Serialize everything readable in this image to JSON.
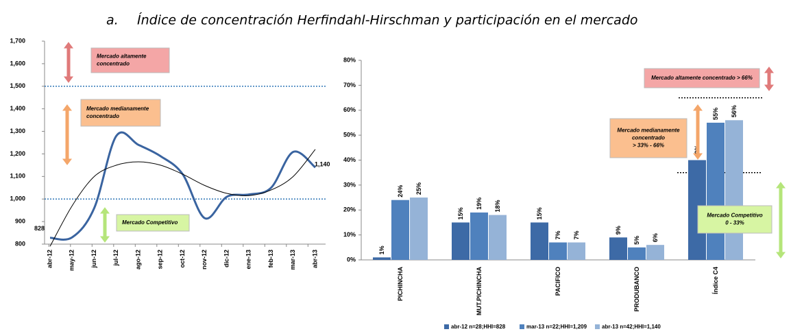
{
  "title": {
    "label": "a.",
    "text": "Índice de concentración Herfindahl-Hirschman y participación en el mercado"
  },
  "chart_data": [
    {
      "type": "line",
      "categories": [
        "abr-12",
        "may-12",
        "jun-12",
        "jul-12",
        "ago-12",
        "sep-12",
        "oct-12",
        "nov-12",
        "dic-12",
        "ene-13",
        "feb-13",
        "mar-13",
        "abr-13"
      ],
      "series": [
        {
          "color": "#3a64a0",
          "values": [
            828,
            830,
            960,
            1280,
            1240,
            1190,
            1110,
            915,
            1010,
            1020,
            1050,
            1209,
            1140
          ],
          "value_labels": [
            "828",
            null,
            null,
            null,
            null,
            null,
            null,
            null,
            null,
            null,
            null,
            null,
            "1,140"
          ]
        },
        {
          "color": "#000000",
          "values": [
            790,
            970,
            1100,
            1150,
            1165,
            1150,
            1110,
            1060,
            1025,
            1015,
            1040,
            1100,
            1220
          ]
        }
      ],
      "ylim": [
        800,
        1700
      ],
      "yticks": [
        {
          "value": 800,
          "label": "800"
        },
        {
          "value": 900,
          "label": "900"
        },
        {
          "value": 1000,
          "label": "1,000"
        },
        {
          "value": 1100,
          "label": "1,100"
        },
        {
          "value": 1200,
          "label": "1,200"
        },
        {
          "value": 1300,
          "label": "1,300"
        },
        {
          "value": 1400,
          "label": "1,400"
        },
        {
          "value": 1500,
          "label": "1,500"
        },
        {
          "value": 1600,
          "label": "1,600"
        },
        {
          "value": 1700,
          "label": "1,700"
        }
      ],
      "reference_lines": [
        1500,
        1000
      ],
      "reference_color": "#2e75b6",
      "annotations": [
        {
          "lines": [
            "Mercado altamente",
            "concentrado"
          ],
          "color": "#f4a6a6",
          "arrow_color": "#e07a7a"
        },
        {
          "lines": [
            "Mercado medianamente",
            "concentrado"
          ],
          "color": "#fbbf8f",
          "arrow_color": "#f4a66a"
        },
        {
          "lines": [
            "Mercado Competitivo"
          ],
          "color": "#d7f5a3",
          "arrow_color": "#b5e57a"
        }
      ]
    },
    {
      "type": "bar",
      "categories": [
        "PICHINCHA",
        "MUT.PICHINCHA",
        "PACIFICO",
        "PRODUBANCO",
        "Índice C4"
      ],
      "series": [
        {
          "name": "abr-12 n=28;HHI=828",
          "color": "#3d6aa6",
          "values": [
            1,
            15,
            15,
            9,
            40
          ],
          "value_labels": [
            "1%",
            "15%",
            "15%",
            "9%",
            "40%"
          ]
        },
        {
          "name": "mar-13 n=22;HHI=1,209",
          "color": "#4f81bd",
          "values": [
            24,
            19,
            7,
            5,
            55
          ],
          "value_labels": [
            "24%",
            "19%",
            "7%",
            "5%",
            "55%"
          ]
        },
        {
          "name": "abr-13 n=42;HHI=1,140",
          "color": "#95b3d7",
          "values": [
            25,
            18,
            7,
            6,
            56
          ],
          "value_labels": [
            "25%",
            "18%",
            "7%",
            "6%",
            "56%"
          ]
        }
      ],
      "ylim": [
        0,
        80
      ],
      "yticks": [
        {
          "value": 0,
          "label": "0%"
        },
        {
          "value": 10,
          "label": "10%"
        },
        {
          "value": 20,
          "label": "20%"
        },
        {
          "value": 30,
          "label": "30%"
        },
        {
          "value": 40,
          "label": "40%"
        },
        {
          "value": 50,
          "label": "50%"
        },
        {
          "value": 60,
          "label": "60%"
        },
        {
          "value": 70,
          "label": "70%"
        },
        {
          "value": 80,
          "label": "80%"
        }
      ],
      "reference_lines": [
        65,
        35
      ],
      "reference_color": "#000000",
      "annotations": [
        {
          "lines": [
            "Mercado altamente concentrado  > 66%"
          ],
          "color": "#f4a6a6",
          "arrow_color": "#e07a7a"
        },
        {
          "lines": [
            "Mercado medianamente",
            "concentrado",
            "> 33% - 66%"
          ],
          "color": "#fbbf8f",
          "arrow_color": "#f4a66a"
        },
        {
          "lines": [
            "Mercado Competitivo",
            "0 - 33%"
          ],
          "color": "#d7f5a3",
          "arrow_color": "#b5e57a"
        }
      ]
    }
  ]
}
